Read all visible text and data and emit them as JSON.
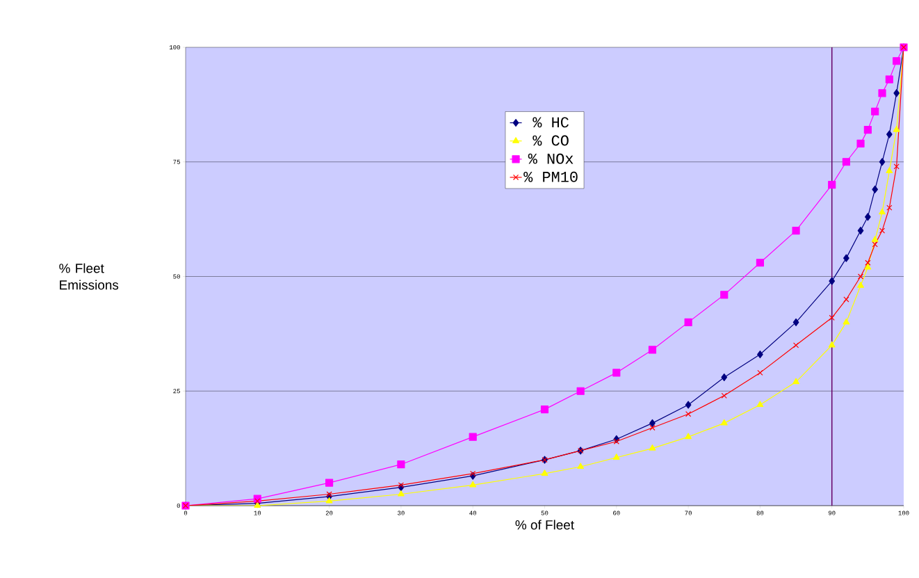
{
  "chart_data": {
    "type": "line",
    "xlabel": "% of Fleet",
    "ylabel": "% Fleet Emissions",
    "x": [
      0,
      10,
      20,
      30,
      40,
      50,
      55,
      60,
      65,
      70,
      75,
      80,
      85,
      90,
      92,
      94,
      95,
      96,
      97,
      98,
      99,
      100
    ],
    "series": [
      {
        "name": "% HC",
        "color": "#000080",
        "marker": "diamond",
        "values": [
          0,
          0.5,
          2,
          4,
          6.5,
          10,
          12,
          14.5,
          18,
          22,
          28,
          33,
          40,
          49,
          54,
          60,
          63,
          69,
          75,
          81,
          90,
          100
        ]
      },
      {
        "name": "% CO",
        "color": "#ffff00",
        "marker": "triangle",
        "values": [
          0,
          0,
          1,
          2.5,
          4.5,
          7,
          8.5,
          10.5,
          12.5,
          15,
          18,
          22,
          27,
          35,
          40,
          48,
          52,
          58,
          64,
          73,
          82,
          100
        ]
      },
      {
        "name": "% NOx",
        "color": "#ff00ff",
        "marker": "square",
        "values": [
          0,
          1.5,
          5,
          9,
          15,
          21,
          25,
          29,
          34,
          40,
          46,
          53,
          60,
          70,
          75,
          79,
          82,
          86,
          90,
          93,
          97,
          100
        ]
      },
      {
        "name": "% PM10",
        "color": "#ff0000",
        "marker": "cross",
        "values": [
          0,
          1,
          2.5,
          4.5,
          7,
          10,
          12,
          14,
          17,
          20,
          24,
          29,
          35,
          41,
          45,
          50,
          53,
          57,
          60,
          65,
          74,
          100
        ]
      }
    ],
    "xlim": [
      0,
      100
    ],
    "ylim": [
      0,
      100
    ],
    "xticks": [
      0,
      10,
      20,
      30,
      40,
      50,
      60,
      70,
      80,
      90,
      100
    ],
    "yticks": [
      0,
      25,
      50,
      75,
      100
    ],
    "grid": "y",
    "legend": "top",
    "ref_lines": [
      {
        "axis": "x",
        "value": 90,
        "color": "#660066"
      }
    ]
  }
}
